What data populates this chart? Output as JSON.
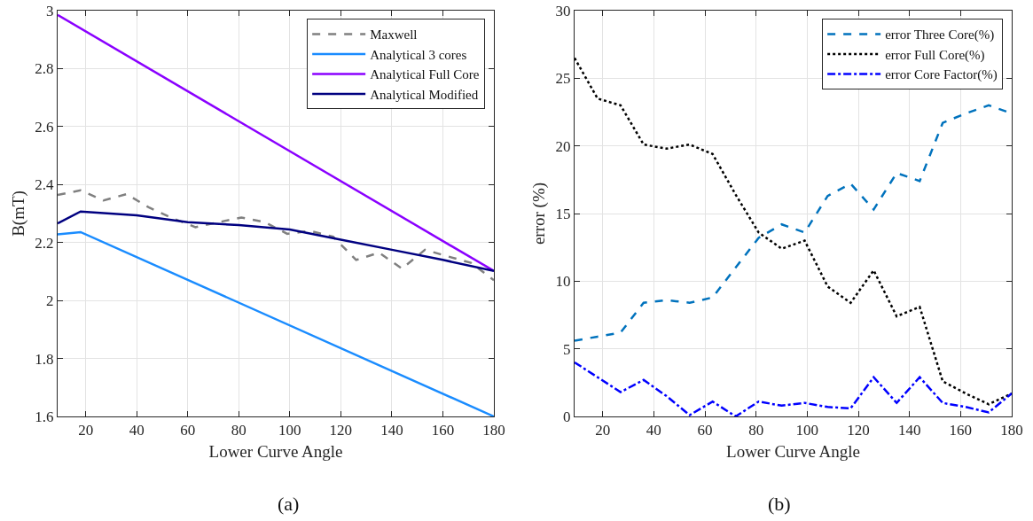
{
  "chart_data": [
    {
      "type": "line",
      "xlabel": "Lower Curve Angle",
      "ylabel": "B(mT)",
      "xlim": [
        9,
        180
      ],
      "xticks": [
        20,
        40,
        60,
        80,
        100,
        120,
        140,
        160,
        {
          "value": 180,
          "label": "180"
        }
      ],
      "ylim": [
        1.6,
        3
      ],
      "yticks": [
        1.6,
        1.8,
        2,
        2.2,
        2.4,
        2.6,
        2.8,
        3
      ],
      "grid": true,
      "legend": "top right",
      "annotations": [
        "(a)"
      ],
      "series": [
        {
          "name": "Maxwell",
          "color": "#808080",
          "line_style": "dashed",
          "x": [
            9,
            18,
            27,
            36,
            45,
            54,
            63,
            72,
            81,
            90,
            99,
            108,
            117,
            126,
            135,
            144,
            153,
            162,
            171,
            180
          ],
          "values": [
            2.364,
            2.38,
            2.345,
            2.367,
            2.32,
            2.284,
            2.253,
            2.27,
            2.286,
            2.271,
            2.23,
            2.24,
            2.22,
            2.14,
            2.165,
            2.11,
            2.175,
            2.152,
            2.13,
            2.07
          ]
        },
        {
          "name": "Analytical 3 cores",
          "color": "#1a8cff",
          "line_style": "solid",
          "x": [
            9,
            18,
            180
          ],
          "values": [
            2.228,
            2.236,
            1.6
          ]
        },
        {
          "name": "Analytical Full Core",
          "color": "#8a00ff",
          "line_style": "solid",
          "x": [
            9,
            180
          ],
          "values": [
            2.985,
            2.102
          ]
        },
        {
          "name": "Analytical Modified",
          "color": "#000080",
          "line_style": "solid",
          "x": [
            9,
            18,
            40,
            60,
            80,
            100,
            120,
            140,
            160,
            180
          ],
          "values": [
            2.266,
            2.307,
            2.294,
            2.27,
            2.26,
            2.245,
            2.21,
            2.175,
            2.14,
            2.102
          ]
        }
      ]
    },
    {
      "type": "line",
      "xlabel": "Lower Curve Angle",
      "ylabel": "error (%)",
      "xlim": [
        9,
        180
      ],
      "xticks": [
        20,
        40,
        60,
        80,
        100,
        120,
        140,
        160,
        {
          "value": 180,
          "label": "180"
        }
      ],
      "ylim": [
        0,
        30
      ],
      "yticks": [
        0,
        5,
        10,
        15,
        20,
        25,
        30
      ],
      "grid": true,
      "legend": "top right",
      "annotations": [
        "(b)"
      ],
      "series": [
        {
          "name": "error Three Core(%)",
          "color": "#0072bd",
          "line_style": "dashed",
          "x": [
            9,
            18,
            27,
            36,
            45,
            54,
            63,
            72,
            81,
            90,
            99,
            108,
            117,
            126,
            135,
            144,
            153,
            162,
            171,
            180
          ],
          "values": [
            5.6,
            5.9,
            6.2,
            8.4,
            8.6,
            8.4,
            8.8,
            11.0,
            13.2,
            14.2,
            13.6,
            16.3,
            17.2,
            15.3,
            18.0,
            17.4,
            21.7,
            22.4,
            23.0,
            22.4
          ]
        },
        {
          "name": "error Full Core(%)",
          "color": "#000000",
          "line_style": "dotted",
          "x": [
            9,
            18,
            27,
            36,
            45,
            54,
            63,
            72,
            81,
            90,
            99,
            108,
            117,
            126,
            135,
            144,
            153,
            162,
            171,
            180
          ],
          "values": [
            26.5,
            23.5,
            23.0,
            20.1,
            19.8,
            20.1,
            19.4,
            16.4,
            13.6,
            12.4,
            13.0,
            9.6,
            8.4,
            10.8,
            7.4,
            8.1,
            2.6,
            1.7,
            0.9,
            1.7
          ]
        },
        {
          "name": "error Core Factor(%)",
          "color": "#0000ff",
          "line_style": "dashdot",
          "x": [
            9,
            18,
            27,
            36,
            45,
            54,
            63,
            72,
            81,
            90,
            99,
            108,
            117,
            126,
            135,
            144,
            153,
            162,
            171,
            180
          ],
          "values": [
            4.0,
            2.9,
            1.8,
            2.7,
            1.5,
            0.1,
            1.1,
            0.0,
            1.1,
            0.8,
            1.0,
            0.7,
            0.6,
            2.9,
            1.0,
            2.9,
            1.0,
            0.7,
            0.3,
            1.7
          ]
        }
      ]
    }
  ]
}
